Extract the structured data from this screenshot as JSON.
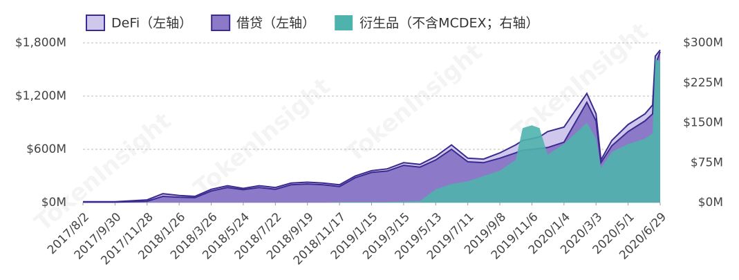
{
  "chart_data": {
    "type": "area",
    "watermark": "TokenInsight",
    "x": [
      "2017/8/2",
      "2017/9/30",
      "2017/11/28",
      "2017/12/27",
      "2018/1/26",
      "2018/2/24",
      "2018/3/26",
      "2018/4/25",
      "2018/5/24",
      "2018/6/22",
      "2018/7/22",
      "2018/8/20",
      "2018/9/19",
      "2018/10/18",
      "2018/11/17",
      "2018/12/16",
      "2019/1/15",
      "2019/2/13",
      "2019/3/15",
      "2019/4/14",
      "2019/5/13",
      "2019/6/11",
      "2019/7/11",
      "2019/8/9",
      "2019/9/8",
      "2019/10/7",
      "2019/10/20",
      "2019/11/6",
      "2019/11/20",
      "2019/12/5",
      "2020/1/4",
      "2020/2/15",
      "2020/3/3",
      "2020/3/12",
      "2020/4/1",
      "2020/5/1",
      "2020/6/1",
      "2020/6/15",
      "2020/6/20",
      "2020/6/29"
    ],
    "xlim": [
      "2017/8/2",
      "2020/6/29"
    ],
    "xticks": [
      "2017/8/2",
      "2017/9/30",
      "2017/11/28",
      "2018/1/26",
      "2018/3/26",
      "2018/5/24",
      "2018/7/22",
      "2018/9/19",
      "2018/11/17",
      "2019/1/15",
      "2019/3/15",
      "2019/5/13",
      "2019/7/11",
      "2019/9/8",
      "2019/11/6",
      "2020/1/4",
      "2020/3/3",
      "2020/5/1",
      "2020/6/29"
    ],
    "ylim": [
      0,
      1800
    ],
    "yticks": [
      {
        "value": 0,
        "label": "$0M"
      },
      {
        "value": 600,
        "label": "$600M"
      },
      {
        "value": 1200,
        "label": "$1,200M"
      },
      {
        "value": 1800,
        "label": "$1,800M"
      }
    ],
    "y2lim": [
      0,
      300
    ],
    "y2ticks": [
      {
        "value": 0,
        "label": "$0M"
      },
      {
        "value": 75,
        "label": "$75M"
      },
      {
        "value": 150,
        "label": "$150M"
      },
      {
        "value": 225,
        "label": "$225M"
      },
      {
        "value": 300,
        "label": "$300M"
      }
    ],
    "grid": true,
    "legend": "top-left",
    "series": [
      {
        "name": "DeFi（左轴）",
        "color": "#d0c7ec",
        "line_color": "#3b2a8f",
        "axis": "y",
        "values": [
          10,
          10,
          30,
          100,
          80,
          70,
          150,
          190,
          160,
          190,
          170,
          220,
          230,
          220,
          200,
          300,
          360,
          380,
          450,
          430,
          520,
          650,
          500,
          490,
          560,
          650,
          700,
          720,
          740,
          800,
          850,
          1230,
          1000,
          480,
          700,
          880,
          1000,
          1100,
          1650,
          1720
        ]
      },
      {
        "name": "借贷（左轴）",
        "color": "#8c79c8",
        "line_color": "#3b2a8f",
        "axis": "y",
        "values": [
          5,
          5,
          15,
          70,
          60,
          55,
          130,
          170,
          145,
          170,
          150,
          200,
          210,
          200,
          180,
          280,
          340,
          355,
          420,
          400,
          480,
          600,
          460,
          450,
          500,
          560,
          590,
          600,
          610,
          620,
          680,
          1130,
          920,
          450,
          640,
          800,
          920,
          1000,
          1550,
          1700
        ]
      },
      {
        "name": "衍生品（不含MCDEX；右轴）",
        "color": "#4fb3ad",
        "axis": "y2",
        "values": [
          0,
          0,
          0,
          0,
          0,
          0,
          0,
          0,
          0,
          0,
          0,
          0,
          0,
          0,
          1,
          1,
          1,
          1,
          2,
          3,
          25,
          35,
          40,
          50,
          60,
          80,
          140,
          145,
          140,
          90,
          110,
          150,
          120,
          65,
          95,
          110,
          120,
          130,
          270,
          265
        ]
      }
    ]
  }
}
